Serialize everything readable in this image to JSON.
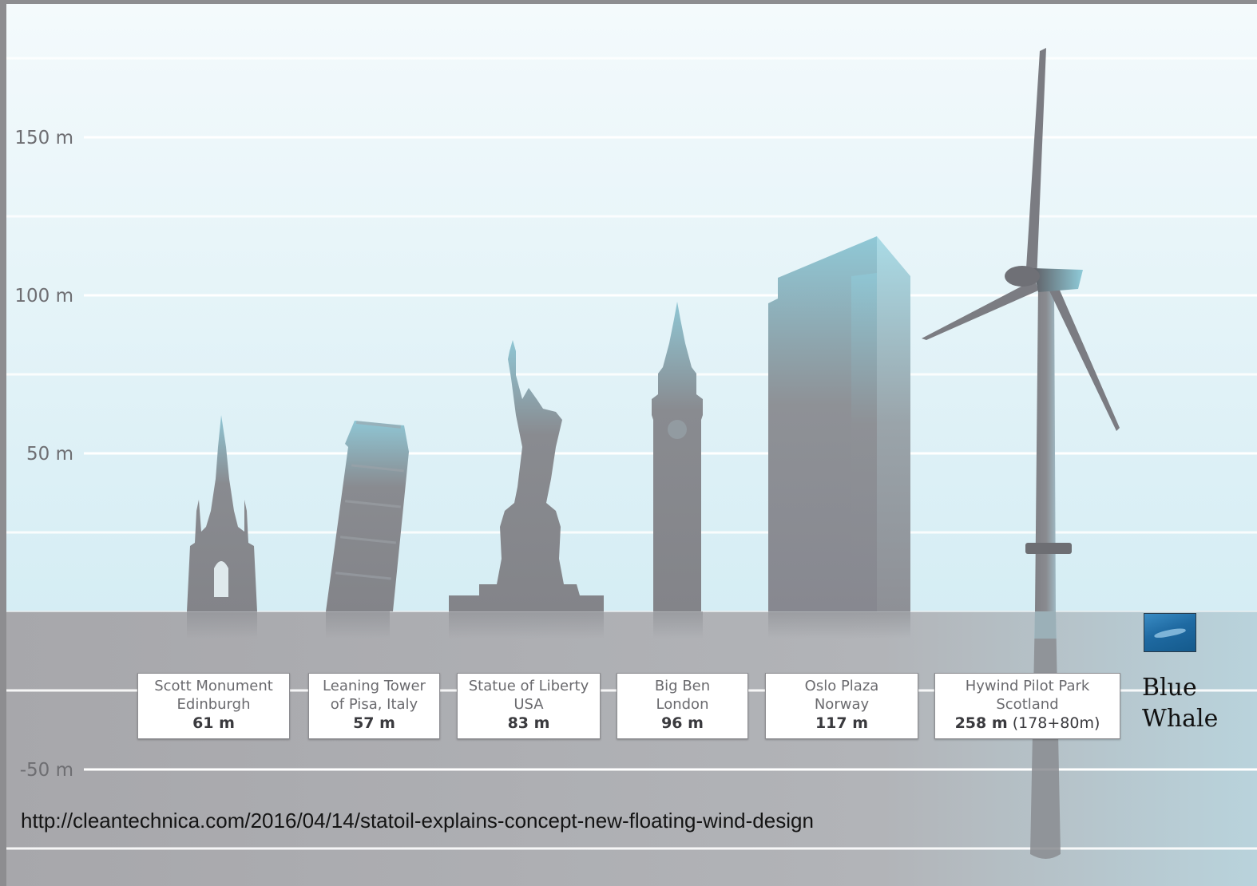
{
  "chart_data": {
    "type": "bar",
    "title": "",
    "xlabel": "",
    "ylabel": "",
    "y_unit": "m",
    "ylim": [
      -78,
      192
    ],
    "yticks": [
      {
        "value": 150,
        "label": "150 m"
      },
      {
        "value": 100,
        "label": "100 m"
      },
      {
        "value": 50,
        "label": "50 m"
      },
      {
        "value": -50,
        "label": "-50 m"
      }
    ],
    "gridlines": [
      175,
      125,
      75,
      25,
      -25,
      -75
    ],
    "sea_level": 0,
    "grid": true,
    "categories": [
      {
        "line1": "Scott Monument",
        "line2": "Edinburgh",
        "height_label": "61 m",
        "height_extra": "",
        "value": 61,
        "icon": "gothic-spire-icon"
      },
      {
        "line1": "Leaning Tower",
        "line2": "of Pisa, Italy",
        "height_label": "57 m",
        "height_extra": "",
        "value": 57,
        "icon": "leaning-tower-icon"
      },
      {
        "line1": "Statue of Liberty",
        "line2": "USA",
        "height_label": "83 m",
        "height_extra": "",
        "value": 83,
        "icon": "statue-icon"
      },
      {
        "line1": "Big Ben",
        "line2": "London",
        "height_label": "96 m",
        "height_extra": "",
        "value": 96,
        "icon": "clock-tower-icon"
      },
      {
        "line1": "Oslo Plaza",
        "line2": "Norway",
        "height_label": "117 m",
        "height_extra": "",
        "value": 117,
        "icon": "skyscraper-icon"
      },
      {
        "line1": "Hywind Pilot Park",
        "line2": "Scotland",
        "height_label": "258 m",
        "height_extra": "(178+80m)",
        "value": 178,
        "below_water": 80,
        "icon": "wind-turbine-icon"
      }
    ],
    "annotations": {
      "blue_whale_label": "Blue Whale",
      "blue_whale_icon": "blue-whale-photo-icon"
    }
  },
  "source": {
    "url_text": "http://cleantechnica.com/2016/04/14/statoil-explains-concept-new-floating-wind-design"
  },
  "colors": {
    "sky_top": "#f4fafc",
    "sky_bottom": "#d7eef5",
    "sea": "#acacb0",
    "silhouette": "#85868b",
    "silhouette_accent": "#8fc7d6",
    "grid": "#ffffff"
  }
}
